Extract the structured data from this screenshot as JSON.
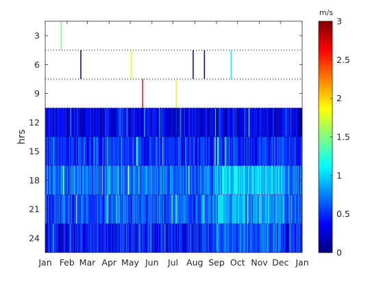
{
  "chart_data": {
    "type": "heatmap",
    "title": "",
    "xlabel": "",
    "ylabel": "hrs",
    "x_tick_labels": [
      "Jan",
      "Feb",
      "Mar",
      "Apr",
      "May",
      "Jun",
      "Jul",
      "Aug",
      "Sep",
      "Oct",
      "Nov",
      "Dec",
      "Jan"
    ],
    "x_range_days": [
      0,
      366
    ],
    "y_tick_values": [
      3,
      6,
      9,
      12,
      15,
      18,
      21,
      24
    ],
    "y_range_hours": [
      1.5,
      25.5
    ],
    "y_reversed": true,
    "colorbar": {
      "title": "m/s",
      "range": [
        0,
        3
      ],
      "ticks": [
        0,
        0.5,
        1,
        1.5,
        2,
        2.5,
        3
      ],
      "tick_labels": [
        "0",
        "0.5",
        "1",
        "1.5",
        "2",
        "2.5",
        "3"
      ],
      "colormap": "jet"
    },
    "dotted_rows_hours": [
      4.5,
      7.5,
      10.5,
      13.5,
      16.5,
      19.5,
      22.5
    ],
    "sparse_measurements": [
      {
        "day": 22,
        "hour_start": 1.5,
        "hour_end": 4.5,
        "value": 1.5
      },
      {
        "day": 50,
        "hour_start": 4.5,
        "hour_end": 7.5,
        "value": 0.1
      },
      {
        "day": 122,
        "hour_start": 4.5,
        "hour_end": 7.5,
        "value": 1.9
      },
      {
        "day": 210,
        "hour_start": 4.5,
        "hour_end": 7.5,
        "value": 0.2
      },
      {
        "day": 226,
        "hour_start": 4.5,
        "hour_end": 7.5,
        "value": 0.1
      },
      {
        "day": 264,
        "hour_start": 4.5,
        "hour_end": 7.5,
        "value": 1.1
      },
      {
        "day": 138,
        "hour_start": 7.5,
        "hour_end": 10.5,
        "value": 2.6
      },
      {
        "day": 186,
        "hour_start": 7.5,
        "hour_end": 10.5,
        "value": 1.8
      }
    ],
    "dense_bands": [
      {
        "hour_start": 10.5,
        "hour_end": 13.5,
        "typical_value": 0.3
      },
      {
        "hour_start": 13.5,
        "hour_end": 16.5,
        "typical_value": 0.5
      },
      {
        "hour_start": 16.5,
        "hour_end": 19.5,
        "typical_value": 0.7
      },
      {
        "hour_start": 19.5,
        "hour_end": 22.5,
        "typical_value": 0.6
      },
      {
        "hour_start": 22.5,
        "hour_end": 25.5,
        "typical_value": 0.4
      }
    ],
    "grid": false,
    "legend": "colorbar-right"
  }
}
